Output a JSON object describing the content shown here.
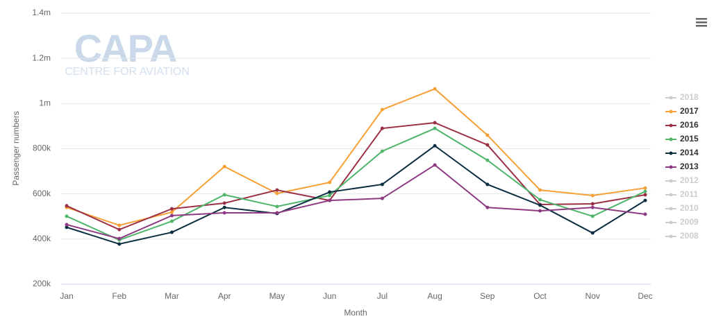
{
  "chart_data": {
    "type": "line",
    "watermark": {
      "title": "CAPA",
      "subtitle": "CENTRE FOR AVIATION"
    },
    "x_label": "Month",
    "y_label": "Passenger numbers",
    "categories": [
      "Jan",
      "Feb",
      "Mar",
      "Apr",
      "May",
      "Jun",
      "Jul",
      "Aug",
      "Sep",
      "Oct",
      "Nov",
      "Dec"
    ],
    "ylim": [
      200000,
      1400000
    ],
    "yticks": [
      {
        "value": 200000,
        "label": "200k"
      },
      {
        "value": 400000,
        "label": "400k"
      },
      {
        "value": 600000,
        "label": "600k"
      },
      {
        "value": 800000,
        "label": "800k"
      },
      {
        "value": 1000000,
        "label": "1m"
      },
      {
        "value": 1200000,
        "label": "1.2m"
      },
      {
        "value": 1400000,
        "label": "1.4m"
      }
    ],
    "grid": true,
    "legend": "right",
    "series": [
      {
        "name": "2018",
        "color": "#cccccc",
        "visible": false,
        "values": [
          null,
          null,
          null,
          null,
          null,
          null,
          null,
          null,
          null,
          null,
          null,
          null
        ]
      },
      {
        "name": "2017",
        "color": "#f7a035",
        "visible": true,
        "values": [
          540000,
          461000,
          519000,
          721000,
          602000,
          651000,
          973000,
          1065000,
          860000,
          617000,
          593000,
          626000
        ]
      },
      {
        "name": "2016",
        "color": "#9b3045",
        "visible": true,
        "values": [
          547000,
          442000,
          534000,
          559000,
          617000,
          571000,
          890000,
          915000,
          817000,
          553000,
          556000,
          596000
        ]
      },
      {
        "name": "2015",
        "color": "#4fb56a",
        "visible": true,
        "values": [
          501000,
          396000,
          479000,
          596000,
          544000,
          593000,
          789000,
          890000,
          749000,
          574000,
          501000,
          611000
        ]
      },
      {
        "name": "2014",
        "color": "#0b2e40",
        "visible": true,
        "values": [
          452000,
          378000,
          430000,
          540000,
          513000,
          608000,
          642000,
          813000,
          642000,
          550000,
          427000,
          571000
        ]
      },
      {
        "name": "2013",
        "color": "#8e3a83",
        "visible": true,
        "values": [
          464000,
          402000,
          504000,
          516000,
          516000,
          571000,
          580000,
          728000,
          540000,
          525000,
          540000,
          510000
        ]
      },
      {
        "name": "2012",
        "color": "#cccccc",
        "visible": false,
        "values": [
          null,
          null,
          null,
          null,
          null,
          null,
          null,
          null,
          null,
          null,
          null,
          null
        ]
      },
      {
        "name": "2011",
        "color": "#cccccc",
        "visible": false,
        "values": [
          null,
          null,
          null,
          null,
          null,
          null,
          null,
          null,
          null,
          null,
          null,
          null
        ]
      },
      {
        "name": "2010",
        "color": "#cccccc",
        "visible": false,
        "values": [
          null,
          null,
          null,
          null,
          null,
          null,
          null,
          null,
          null,
          null,
          null,
          null
        ]
      },
      {
        "name": "2009",
        "color": "#cccccc",
        "visible": false,
        "values": [
          null,
          null,
          null,
          null,
          null,
          null,
          null,
          null,
          null,
          null,
          null,
          null
        ]
      },
      {
        "name": "2008",
        "color": "#cccccc",
        "visible": false,
        "values": [
          null,
          null,
          null,
          null,
          null,
          null,
          null,
          null,
          null,
          null,
          null,
          null
        ]
      }
    ]
  }
}
